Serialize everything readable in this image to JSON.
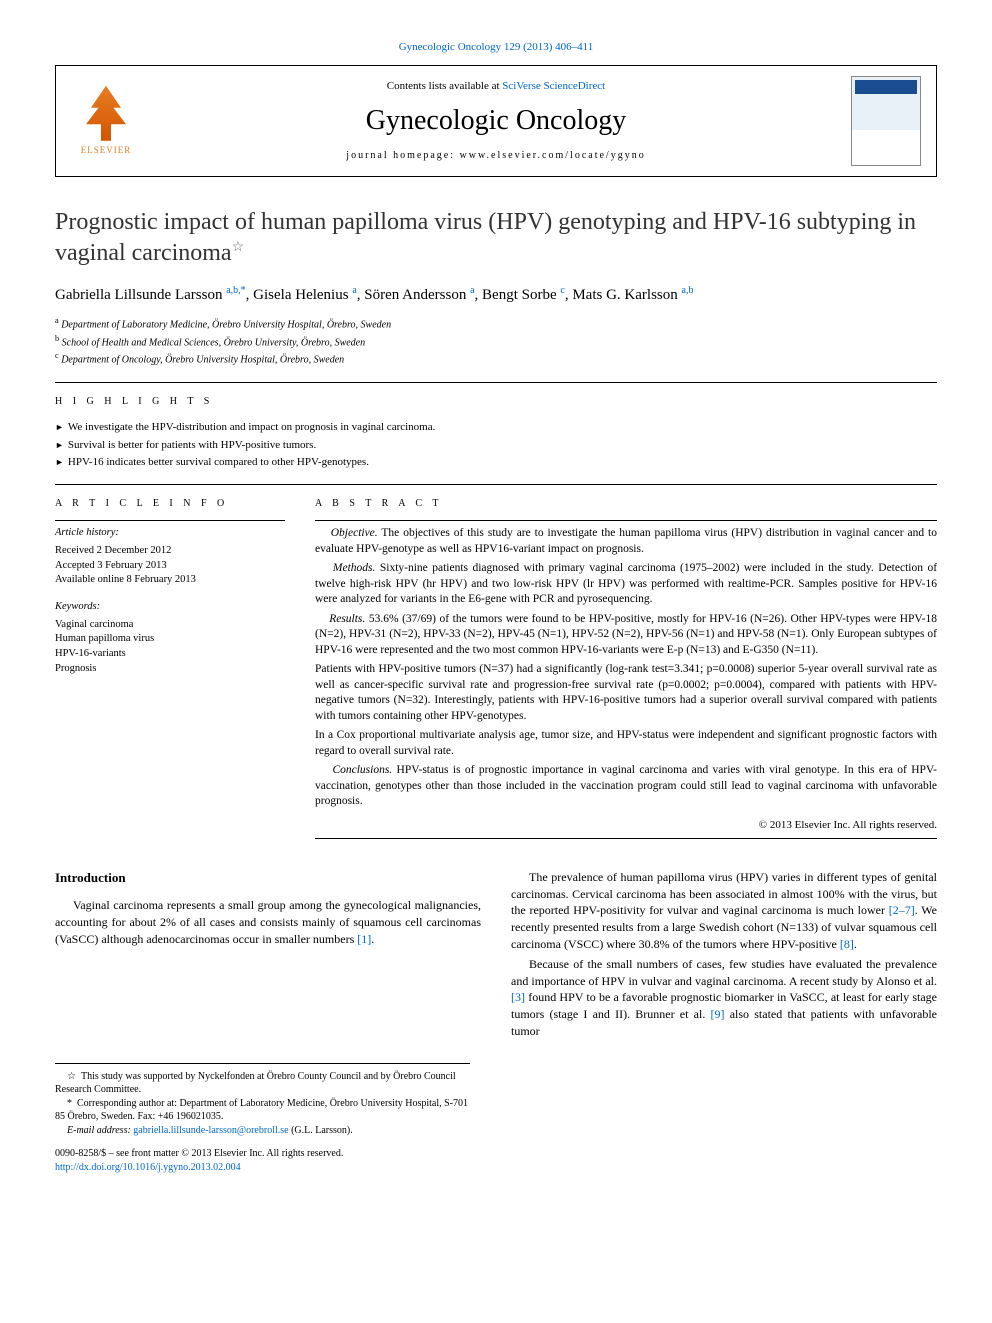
{
  "top_link": {
    "text": "Gynecologic Oncology 129 (2013) 406–411",
    "color": "#0066cc"
  },
  "header": {
    "contents_text": "Contents lists available at ",
    "contents_link": "SciVerse ScienceDirect",
    "journal_name": "Gynecologic Oncology",
    "homepage_label": "journal homepage: ",
    "homepage_url": "www.elsevier.com/locate/ygyno",
    "publisher_label": "ELSEVIER",
    "cover_label": "GYNECOLOGIC ONCOLOGY"
  },
  "title": "Prognostic impact of human papilloma virus (HPV) genotyping and HPV-16 subtyping in vaginal carcinoma",
  "title_note_marker": "☆",
  "authors": [
    {
      "name": "Gabriella Lillsunde Larsson",
      "aff": "a,b,",
      "corr": "*"
    },
    {
      "name": "Gisela Helenius",
      "aff": "a",
      "corr": ""
    },
    {
      "name": "Sören Andersson",
      "aff": "a",
      "corr": ""
    },
    {
      "name": "Bengt Sorbe",
      "aff": "c",
      "corr": ""
    },
    {
      "name": "Mats G. Karlsson",
      "aff": "a,b",
      "corr": ""
    }
  ],
  "affiliations": [
    {
      "marker": "a",
      "text": "Department of Laboratory Medicine, Örebro University Hospital, Örebro, Sweden"
    },
    {
      "marker": "b",
      "text": "School of Health and Medical Sciences, Örebro University, Örebro, Sweden"
    },
    {
      "marker": "c",
      "text": "Department of Oncology, Örebro University Hospital, Örebro, Sweden"
    }
  ],
  "highlights": {
    "label": "H I G H L I G H T S",
    "items": [
      "We investigate the HPV-distribution and impact on prognosis in vaginal carcinoma.",
      "Survival is better for patients with HPV-positive tumors.",
      "HPV-16 indicates better survival compared to other HPV-genotypes."
    ]
  },
  "article_info": {
    "label": "A R T I C L E   I N F O",
    "history_label": "Article history:",
    "history": [
      "Received 2 December 2012",
      "Accepted 3 February 2013",
      "Available online 8 February 2013"
    ],
    "keywords_label": "Keywords:",
    "keywords": [
      "Vaginal carcinoma",
      "Human papilloma virus",
      "HPV-16-variants",
      "Prognosis"
    ]
  },
  "abstract": {
    "label": "A B S T R A C T",
    "objective_label": "Objective.",
    "objective": "The objectives of this study are to investigate the human papilloma virus (HPV) distribution in vaginal cancer and to evaluate HPV-genotype as well as HPV16-variant impact on prognosis.",
    "methods_label": "Methods.",
    "methods": "Sixty-nine patients diagnosed with primary vaginal carcinoma (1975–2002) were included in the study. Detection of twelve high-risk HPV (hr HPV) and two low-risk HPV (lr HPV) was performed with realtime-PCR. Samples positive for HPV-16 were analyzed for variants in the E6-gene with PCR and pyrosequencing.",
    "results_label": "Results.",
    "results_p1": "53.6% (37/69) of the tumors were found to be HPV-positive, mostly for HPV-16 (N=26). Other HPV-types were HPV-18 (N=2), HPV-31 (N=2), HPV-33 (N=2), HPV-45 (N=1), HPV-52 (N=2), HPV-56 (N=1) and HPV-58 (N=1). Only European subtypes of HPV-16 were represented and the two most common HPV-16-variants were E-p (N=13) and E-G350 (N=11).",
    "results_p2": "Patients with HPV-positive tumors (N=37) had a significantly (log-rank test=3.341; p=0.0008) superior 5-year overall survival rate as well as cancer-specific survival rate and progression-free survival rate (p=0.0002; p=0.0004), compared with patients with HPV-negative tumors (N=32). Interestingly, patients with HPV-16-positive tumors had a superior overall survival compared with patients with tumors containing other HPV-genotypes.",
    "results_p3": "In a Cox proportional multivariate analysis age, tumor size, and HPV-status were independent and significant prognostic factors with regard to overall survival rate.",
    "conclusions_label": "Conclusions.",
    "conclusions": "HPV-status is of prognostic importance in vaginal carcinoma and varies with viral genotype. In this era of HPV-vaccination, genotypes other than those included in the vaccination program could still lead to vaginal carcinoma with unfavorable prognosis.",
    "copyright": "© 2013 Elsevier Inc. All rights reserved."
  },
  "intro": {
    "heading": "Introduction",
    "left_p1": "Vaginal carcinoma represents a small group among the gynecological malignancies, accounting for about 2% of all cases and consists mainly of squamous cell carcinomas (VaSCC) although adenocarcinomas occur in smaller numbers ",
    "left_p1_ref": "[1]",
    "left_p1_end": ".",
    "right_p1_a": "The prevalence of human papilloma virus (HPV) varies in different types of genital carcinomas. Cervical carcinoma has been associated in almost 100% with the virus, but the reported HPV-positivity for vulvar and vaginal carcinoma is much lower ",
    "right_p1_ref1": "[2–7]",
    "right_p1_b": ". We recently presented results from a large Swedish cohort (N=133) of vulvar squamous cell carcinoma (VSCC) where 30.8% of the tumors where HPV-positive ",
    "right_p1_ref2": "[8]",
    "right_p1_c": ".",
    "right_p2_a": "Because of the small numbers of cases, few studies have evaluated the prevalence and importance of HPV in vulvar and vaginal carcinoma. A recent study by Alonso et al. ",
    "right_p2_ref1": "[3]",
    "right_p2_b": " found HPV to be a favorable prognostic biomarker in VaSCC, at least for early stage tumors (stage I and II). Brunner et al. ",
    "right_p2_ref2": "[9]",
    "right_p2_c": " also stated that patients with unfavorable tumor"
  },
  "footnotes": {
    "funding_marker": "☆",
    "funding": "This study was supported by Nyckelfonden at Örebro County Council and by Örebro Council Research Committee.",
    "corr_marker": "*",
    "corr": "Corresponding author at: Department of Laboratory Medicine, Örebro University Hospital, S-701 85 Örebro, Sweden. Fax: +46 196021035.",
    "email_label": "E-mail address: ",
    "email": "gabriella.lillsunde-larsson@orebroll.se",
    "email_who": "(G.L. Larsson)."
  },
  "footer": {
    "issn": "0090-8258/$ – see front matter © 2013 Elsevier Inc. All rights reserved.",
    "doi": "http://dx.doi.org/10.1016/j.ygyno.2013.02.004"
  },
  "colors": {
    "link": "#0066cc",
    "text": "#000000",
    "elsevier": "#e67e22"
  }
}
